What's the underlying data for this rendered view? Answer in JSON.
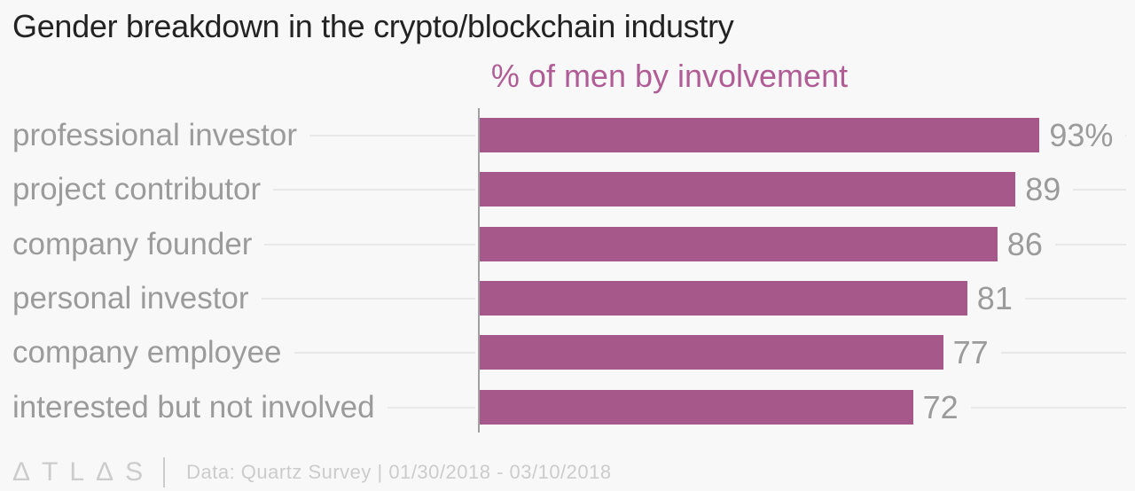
{
  "chart_data": {
    "type": "bar",
    "orientation": "horizontal",
    "title": "Gender breakdown in the crypto/blockchain industry",
    "subtitle": "% of men by involvement",
    "categories": [
      "professional investor",
      "project contributor",
      "company founder",
      "personal investor",
      "company employee",
      "interested but not involved"
    ],
    "values": [
      93,
      89,
      86,
      81,
      77,
      72
    ],
    "value_labels": [
      "93%",
      "89",
      "86",
      "81",
      "77",
      "72"
    ],
    "xlim": [
      0,
      100
    ],
    "grid": false,
    "legend": "none",
    "value_label_position": "outside-right",
    "bar_color": "#a7588b"
  },
  "footer": {
    "brand": "ATLAS",
    "brand_glyphs": "ΔTLΔS",
    "source": "Data: Quartz Survey | 01/30/2018 - 03/10/2018"
  },
  "colors": {
    "background": "#f8f8f8",
    "bar": "#a7588b",
    "title": "#232323",
    "subtitle": "#b05d96",
    "labels": "#9b9b9b",
    "axis": "#a1a1a1",
    "leader": "#e8e8e8",
    "footer": "#cccccc"
  }
}
